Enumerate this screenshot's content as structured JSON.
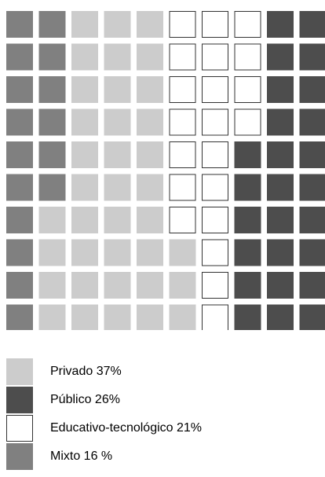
{
  "chart_data": {
    "type": "waffle",
    "grid": {
      "rows": 10,
      "cols": 10
    },
    "categories": [
      "Privado",
      "Público",
      "Educativo-tecnológico",
      "Mixto"
    ],
    "values": [
      37,
      26,
      21,
      16
    ],
    "unit": "%",
    "legend": [
      {
        "label": "Privado 37%",
        "color": "#cccccc",
        "border": "none"
      },
      {
        "label": "Público 26%",
        "color": "#4d4d4d",
        "border": "none"
      },
      {
        "label": "Educativo-tecnológico 21%",
        "color": "#ffffff",
        "border": "#333333"
      },
      {
        "label": "Mixto 16 %",
        "color": "#808080",
        "border": "none"
      }
    ],
    "legend_placement": "bottom-left"
  }
}
